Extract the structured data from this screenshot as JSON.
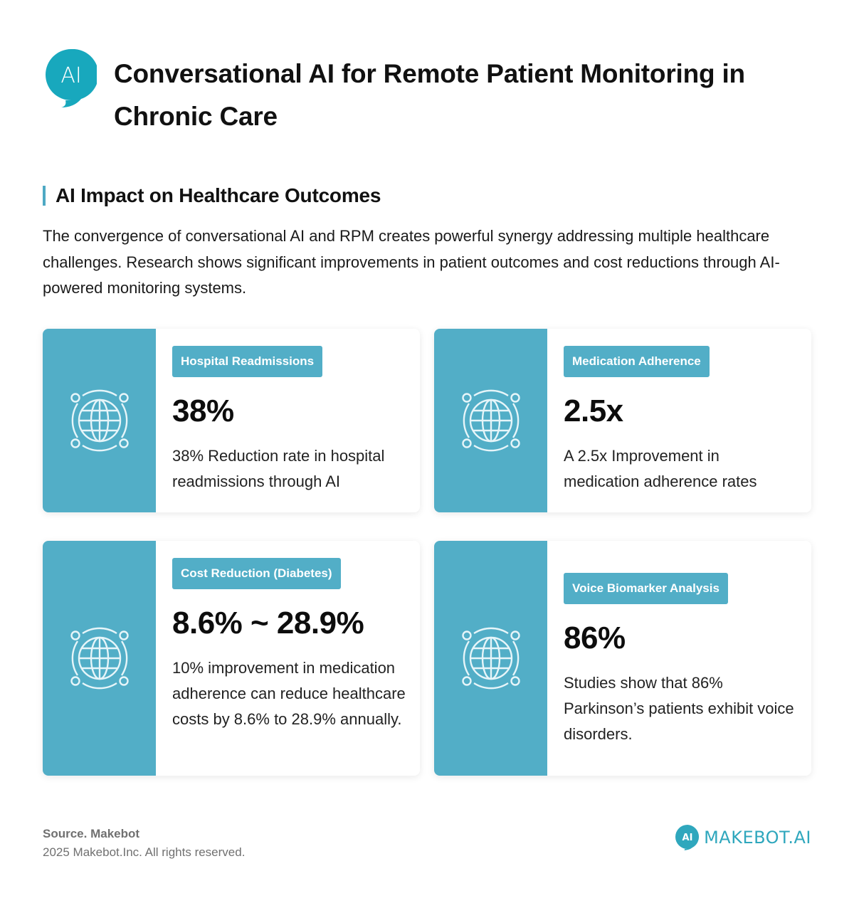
{
  "header": {
    "logo_text": "AI",
    "title": "Conversational AI for Remote Patient Monitoring in Chronic Care"
  },
  "section": {
    "title": "AI Impact on Healthcare Outcomes",
    "intro": "The convergence of conversational AI and RPM creates powerful synergy addressing multiple healthcare challenges. Research shows significant improvements in patient outcomes and cost reductions through AI-powered monitoring systems."
  },
  "cards": [
    {
      "label": "Hospital Readmissions",
      "stat": "38%",
      "description": "38% Reduction rate in hospital readmissions through AI",
      "icon": "globe-network-icon"
    },
    {
      "label": "Medication Adherence",
      "stat": "2.5x",
      "description": "A 2.5x Improvement in medication adherence rates",
      "icon": "globe-network-icon"
    },
    {
      "label": "Cost Reduction (Diabetes)",
      "stat": "8.6% ~ 28.9%",
      "description": "10% improvement in medication adherence can reduce healthcare costs by 8.6% to 28.9% annually.",
      "icon": "globe-network-icon"
    },
    {
      "label": "Voice Biomarker Analysis",
      "stat": "86%",
      "description": "Studies show that 86% Parkinson’s patients exhibit voice disorders.",
      "icon": "globe-network-icon"
    }
  ],
  "footer": {
    "source": "Source. Makebot",
    "copyright": "2025 Makebot.Inc. All rights reserved.",
    "brand_icon_text": "AI",
    "brand_name": "MAKEBOT.AI"
  },
  "colors": {
    "accent": "#52aec7",
    "logo": "#18a8bd",
    "brand_text": "#2fa7bd"
  }
}
